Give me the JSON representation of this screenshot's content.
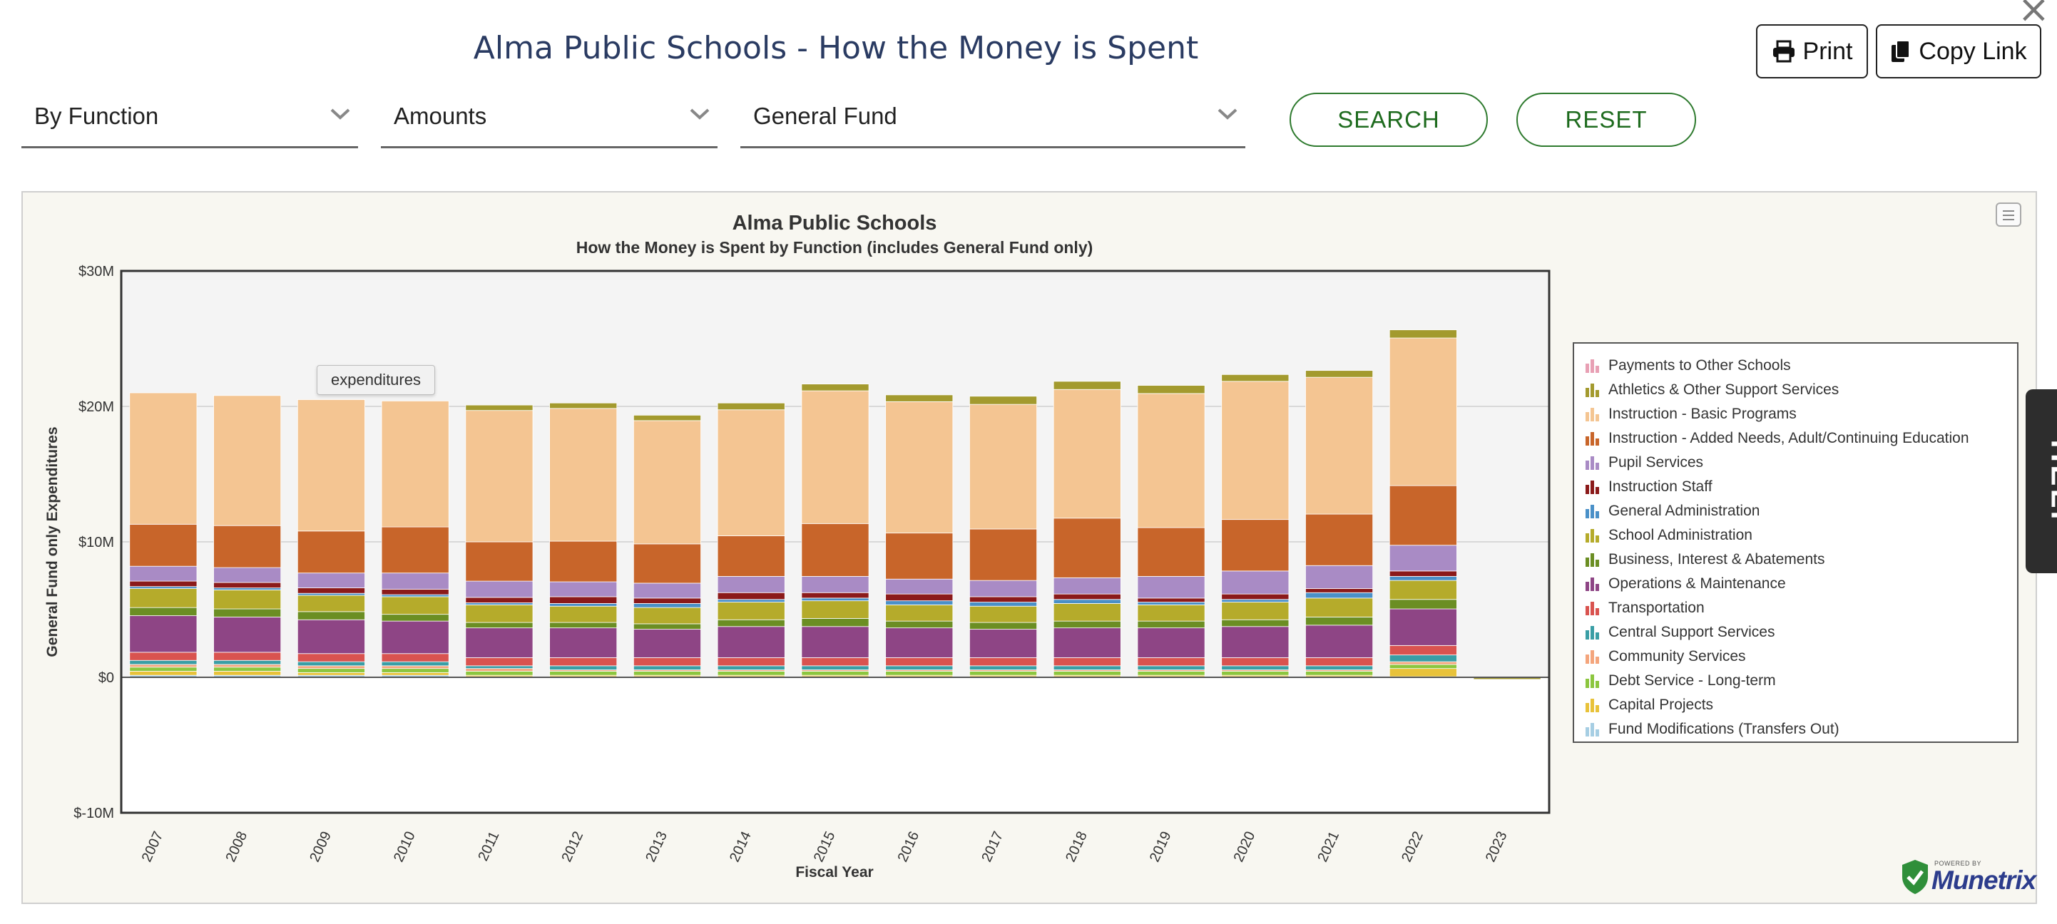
{
  "page": {
    "title": "Alma Public Schools - How the Money is Spent",
    "print_label": "Print",
    "copy_link_label": "Copy Link"
  },
  "filters": {
    "group_by": "By Function",
    "measure": "Amounts",
    "fund": "General Fund",
    "search_label": "SEARCH",
    "reset_label": "RESET"
  },
  "tooltip": "expenditures",
  "help_label": "HELP",
  "brand": {
    "powered_by": "POWERED BY",
    "name": "Munetrix"
  },
  "chart_data": {
    "type": "bar",
    "stacked": true,
    "title": "Alma Public Schools",
    "subtitle": "How the Money is Spent by Function (includes General Fund only)",
    "xlabel": "Fiscal Year",
    "ylabel": "General Fund only Expenditures",
    "ylim": [
      -10,
      30
    ],
    "y_unit": "millions of dollars",
    "y_ticks": [
      "$-10M",
      "$0",
      "$10M",
      "$20M",
      "$30M"
    ],
    "y_tick_values": [
      -10,
      0,
      10,
      20,
      30
    ],
    "legend_position": "right",
    "categories": [
      "2007",
      "2008",
      "2009",
      "2010",
      "2011",
      "2012",
      "2013",
      "2014",
      "2015",
      "2016",
      "2017",
      "2018",
      "2019",
      "2020",
      "2021",
      "2022",
      "2023"
    ],
    "series": [
      {
        "name": "Fund Modifications (Transfers Out)",
        "color": "#a6cee3",
        "values": [
          0.15,
          0.15,
          0.15,
          0.15,
          0.05,
          0.05,
          0.05,
          0.05,
          0.05,
          0.05,
          0.05,
          0.05,
          0.05,
          0.05,
          0.05,
          0.05,
          0
        ]
      },
      {
        "name": "Capital Projects",
        "color": "#e8c23a",
        "values": [
          0.3,
          0.3,
          0.2,
          0.2,
          0.1,
          0.1,
          0.1,
          0.1,
          0.1,
          0.1,
          0.1,
          0.1,
          0.1,
          0.1,
          0.1,
          0.6,
          0
        ]
      },
      {
        "name": "Debt Service - Long-term",
        "color": "#8cc63f",
        "values": [
          0.3,
          0.3,
          0.3,
          0.3,
          0.3,
          0.3,
          0.3,
          0.3,
          0.3,
          0.3,
          0.3,
          0.3,
          0.3,
          0.3,
          0.3,
          0.3,
          0
        ]
      },
      {
        "name": "Community Services",
        "color": "#f4a57c",
        "values": [
          0.2,
          0.2,
          0.2,
          0.2,
          0.2,
          0.1,
          0.1,
          0.1,
          0.1,
          0.1,
          0.1,
          0.1,
          0.1,
          0.1,
          0.1,
          0.2,
          0
        ]
      },
      {
        "name": "Central Support Services",
        "color": "#3a9ea5",
        "values": [
          0.3,
          0.3,
          0.3,
          0.3,
          0.2,
          0.3,
          0.3,
          0.3,
          0.3,
          0.3,
          0.3,
          0.3,
          0.3,
          0.3,
          0.3,
          0.5,
          0
        ]
      },
      {
        "name": "Transportation",
        "color": "#d9534f",
        "values": [
          0.6,
          0.6,
          0.6,
          0.6,
          0.6,
          0.6,
          0.6,
          0.6,
          0.6,
          0.6,
          0.6,
          0.6,
          0.6,
          0.6,
          0.6,
          0.7,
          0
        ]
      },
      {
        "name": "Operations & Maintenance",
        "color": "#8e4585",
        "values": [
          2.7,
          2.6,
          2.5,
          2.4,
          2.2,
          2.2,
          2.1,
          2.3,
          2.3,
          2.2,
          2.1,
          2.2,
          2.2,
          2.3,
          2.4,
          2.7,
          0
        ]
      },
      {
        "name": "Business, Interest & Abatements",
        "color": "#6b8e23",
        "values": [
          0.6,
          0.6,
          0.6,
          0.5,
          0.4,
          0.4,
          0.4,
          0.5,
          0.6,
          0.5,
          0.5,
          0.5,
          0.5,
          0.5,
          0.6,
          0.7,
          0
        ]
      },
      {
        "name": "School Administration",
        "color": "#b5ab2b",
        "values": [
          1.4,
          1.4,
          1.2,
          1.3,
          1.3,
          1.2,
          1.2,
          1.3,
          1.3,
          1.2,
          1.2,
          1.3,
          1.2,
          1.3,
          1.4,
          1.4,
          0
        ]
      },
      {
        "name": "General Administration",
        "color": "#4a90c8",
        "values": [
          0.15,
          0.15,
          0.15,
          0.15,
          0.15,
          0.2,
          0.3,
          0.2,
          0.2,
          0.3,
          0.3,
          0.3,
          0.2,
          0.2,
          0.4,
          0.3,
          0
        ]
      },
      {
        "name": "Instruction Staff",
        "color": "#8b1a1a",
        "values": [
          0.4,
          0.4,
          0.4,
          0.4,
          0.4,
          0.5,
          0.4,
          0.5,
          0.4,
          0.5,
          0.4,
          0.4,
          0.3,
          0.4,
          0.3,
          0.4,
          0
        ]
      },
      {
        "name": "Pupil Services",
        "color": "#a98bc5",
        "values": [
          1.1,
          1.1,
          1.1,
          1.2,
          1.2,
          1.1,
          1.1,
          1.2,
          1.2,
          1.1,
          1.2,
          1.2,
          1.6,
          1.7,
          1.7,
          1.9,
          0
        ]
      },
      {
        "name": "Instruction - Added Needs, Adult/Continuing Education",
        "color": "#c8652a",
        "values": [
          3.1,
          3.1,
          3.1,
          3.4,
          2.9,
          3.0,
          2.9,
          3.0,
          3.9,
          3.4,
          3.8,
          4.4,
          3.6,
          3.8,
          3.8,
          4.4,
          0
        ]
      },
      {
        "name": "Instruction - Basic Programs",
        "color": "#f4c592",
        "values": [
          9.7,
          9.6,
          9.7,
          9.3,
          9.7,
          9.8,
          9.1,
          9.3,
          9.8,
          9.7,
          9.2,
          9.5,
          9.9,
          10.2,
          10.1,
          10.9,
          0
        ]
      },
      {
        "name": "Athletics & Other Support Services",
        "color": "#a39a2e",
        "values": [
          0,
          0,
          0,
          0,
          0.4,
          0.4,
          0.4,
          0.5,
          0.5,
          0.5,
          0.6,
          0.6,
          0.6,
          0.5,
          0.5,
          0.6,
          -0.15
        ]
      },
      {
        "name": "Payments to Other Schools",
        "color": "#e8a0b4",
        "values": [
          0,
          0,
          0,
          0,
          0,
          0,
          0,
          0,
          0,
          0,
          0,
          0,
          0,
          0,
          0,
          0,
          0
        ]
      }
    ]
  }
}
